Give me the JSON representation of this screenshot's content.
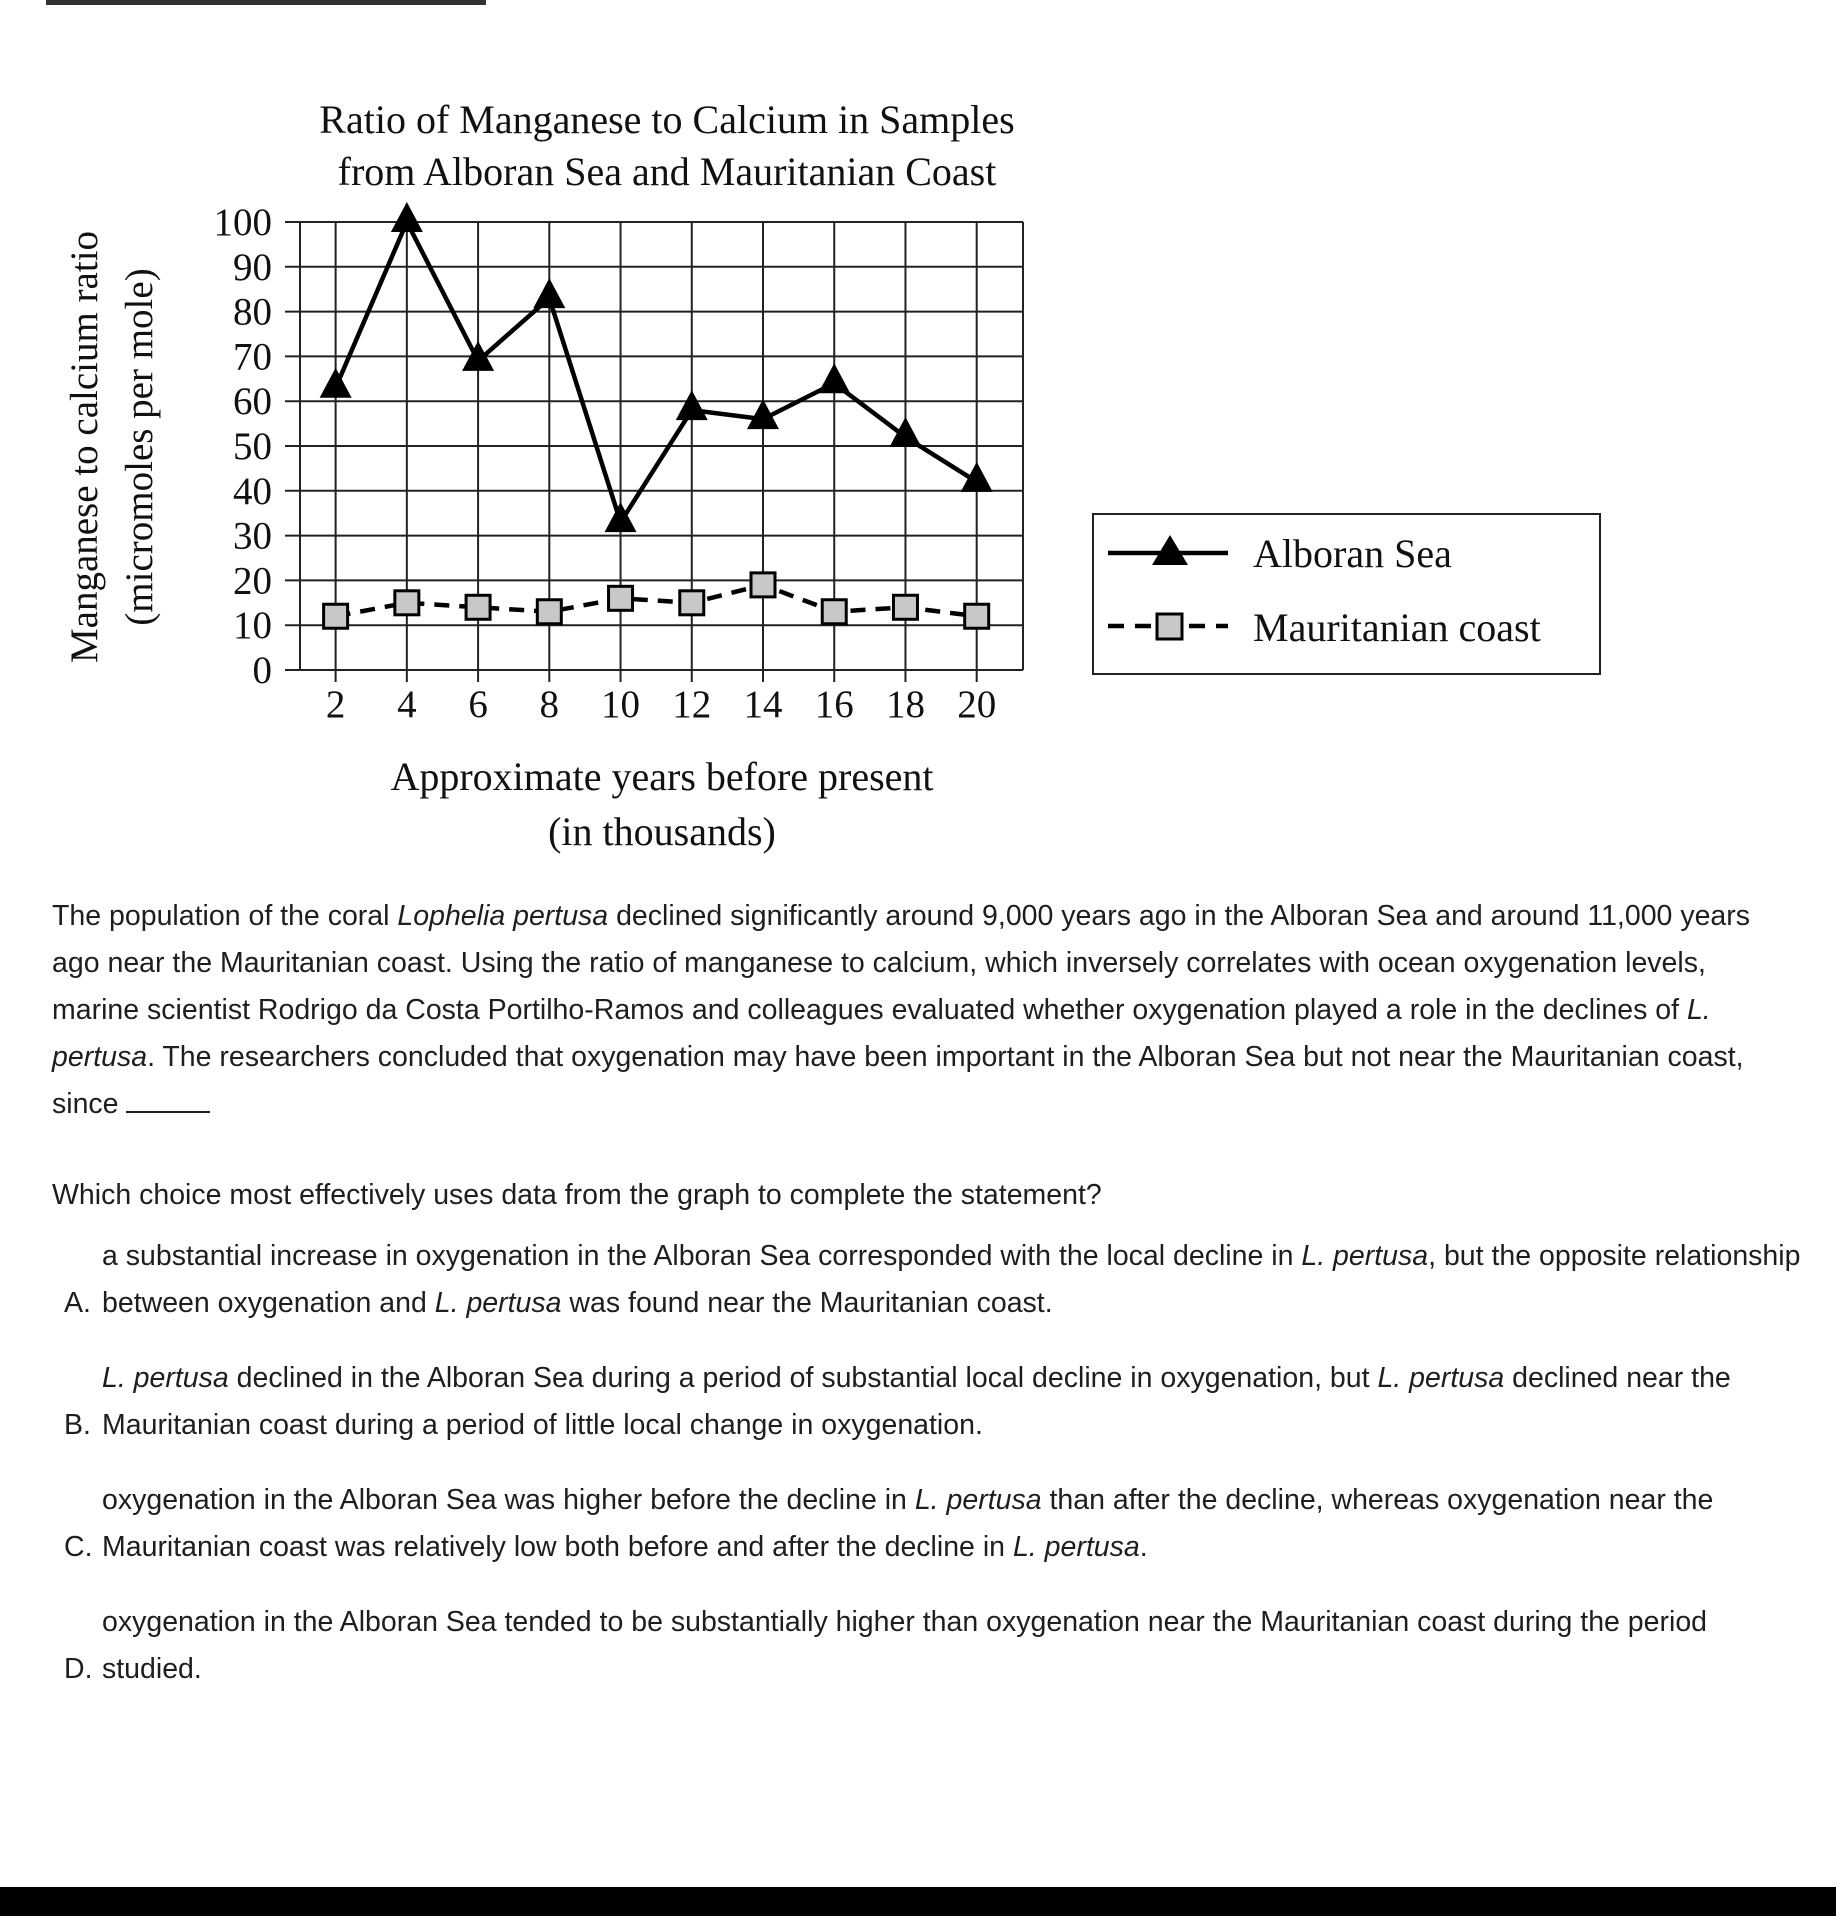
{
  "chart_data": {
    "type": "line",
    "title": "Ratio of Manganese to Calcium in Samples from Alboran Sea and Mauritanian Coast",
    "title_lines": [
      "Ratio of Manganese to Calcium in Samples",
      "from Alboran Sea and Mauritanian Coast"
    ],
    "xlabel": "Approximate years before present (in thousands)",
    "xlabel_lines": [
      "Approximate years before present",
      "(in thousands)"
    ],
    "ylabel": "Manganese to calcium ratio (micromoles per mole)",
    "ylabel_lines": [
      "Manganese to calcium ratio",
      "(micromoles per mole)"
    ],
    "x": [
      2,
      4,
      6,
      8,
      10,
      12,
      14,
      16,
      18,
      20
    ],
    "x_ticks": [
      "2",
      "4",
      "6",
      "8",
      "10",
      "12",
      "14",
      "16",
      "18",
      "20"
    ],
    "y_ticks": [
      "0",
      "10",
      "20",
      "30",
      "40",
      "50",
      "60",
      "70",
      "80",
      "90",
      "100"
    ],
    "ylim": [
      0,
      100
    ],
    "grid": true,
    "legend_position": "right",
    "series": [
      {
        "name": "Alboran Sea",
        "marker": "triangle",
        "line": "solid",
        "color": "#000000",
        "values": [
          63,
          100,
          69,
          83,
          33,
          58,
          56,
          64,
          52,
          42
        ]
      },
      {
        "name": "Mauritanian coast",
        "marker": "square",
        "line": "dashed",
        "color": "#000000",
        "fill": "#c8c8c8",
        "values": [
          12,
          15,
          14,
          13,
          16,
          15,
          19,
          13,
          14,
          12
        ]
      }
    ]
  },
  "passage": {
    "p1": "The population of the coral ",
    "i1": "Lophelia pertusa",
    "p2": " declined significantly around 9,000 years ago in the Alboran Sea and around 11,000 years ago near the Mauritanian coast. Using the ratio of manganese to calcium, which inversely correlates with ocean oxygenation levels, marine scientist Rodrigo da Costa Portilho-Ramos and colleagues evaluated whether oxygenation played a role in the declines of ",
    "i2": "L. pertusa",
    "p3": ". The researchers concluded that oxygenation may have been important in the Alboran Sea but not near the Mauritanian coast, since "
  },
  "question": "Which choice most effectively uses data from the graph to complete the statement?",
  "choices": {
    "a": {
      "letter": "A.",
      "t1": "a substantial increase in oxygenation in the Alboran Sea corresponded with the local decline in ",
      "i1": "L. pertusa",
      "t2": ", but the opposite relationship between oxygenation and ",
      "i2": "L. pertusa",
      "t3": " was found near the Mauritanian coast."
    },
    "b": {
      "letter": "B.",
      "i1": "L. pertusa",
      "t1": " declined in the Alboran Sea during a period of substantial local decline in oxygenation, but ",
      "i2": "L. pertusa",
      "t2": " declined near the Mauritanian coast during a period of little local change in oxygenation."
    },
    "c": {
      "letter": "C.",
      "t1": "oxygenation in the Alboran Sea was higher before the decline in ",
      "i1": "L. pertusa",
      "t2": " than after the decline, whereas oxygenation near the Mauritanian coast was relatively low both before and after the decline in ",
      "i2": "L. pertusa",
      "t3": "."
    },
    "d": {
      "letter": "D.",
      "t1": "oxygenation in the Alboran Sea tended to be substantially higher than oxygenation near the Mauritanian coast during the period studied."
    }
  }
}
